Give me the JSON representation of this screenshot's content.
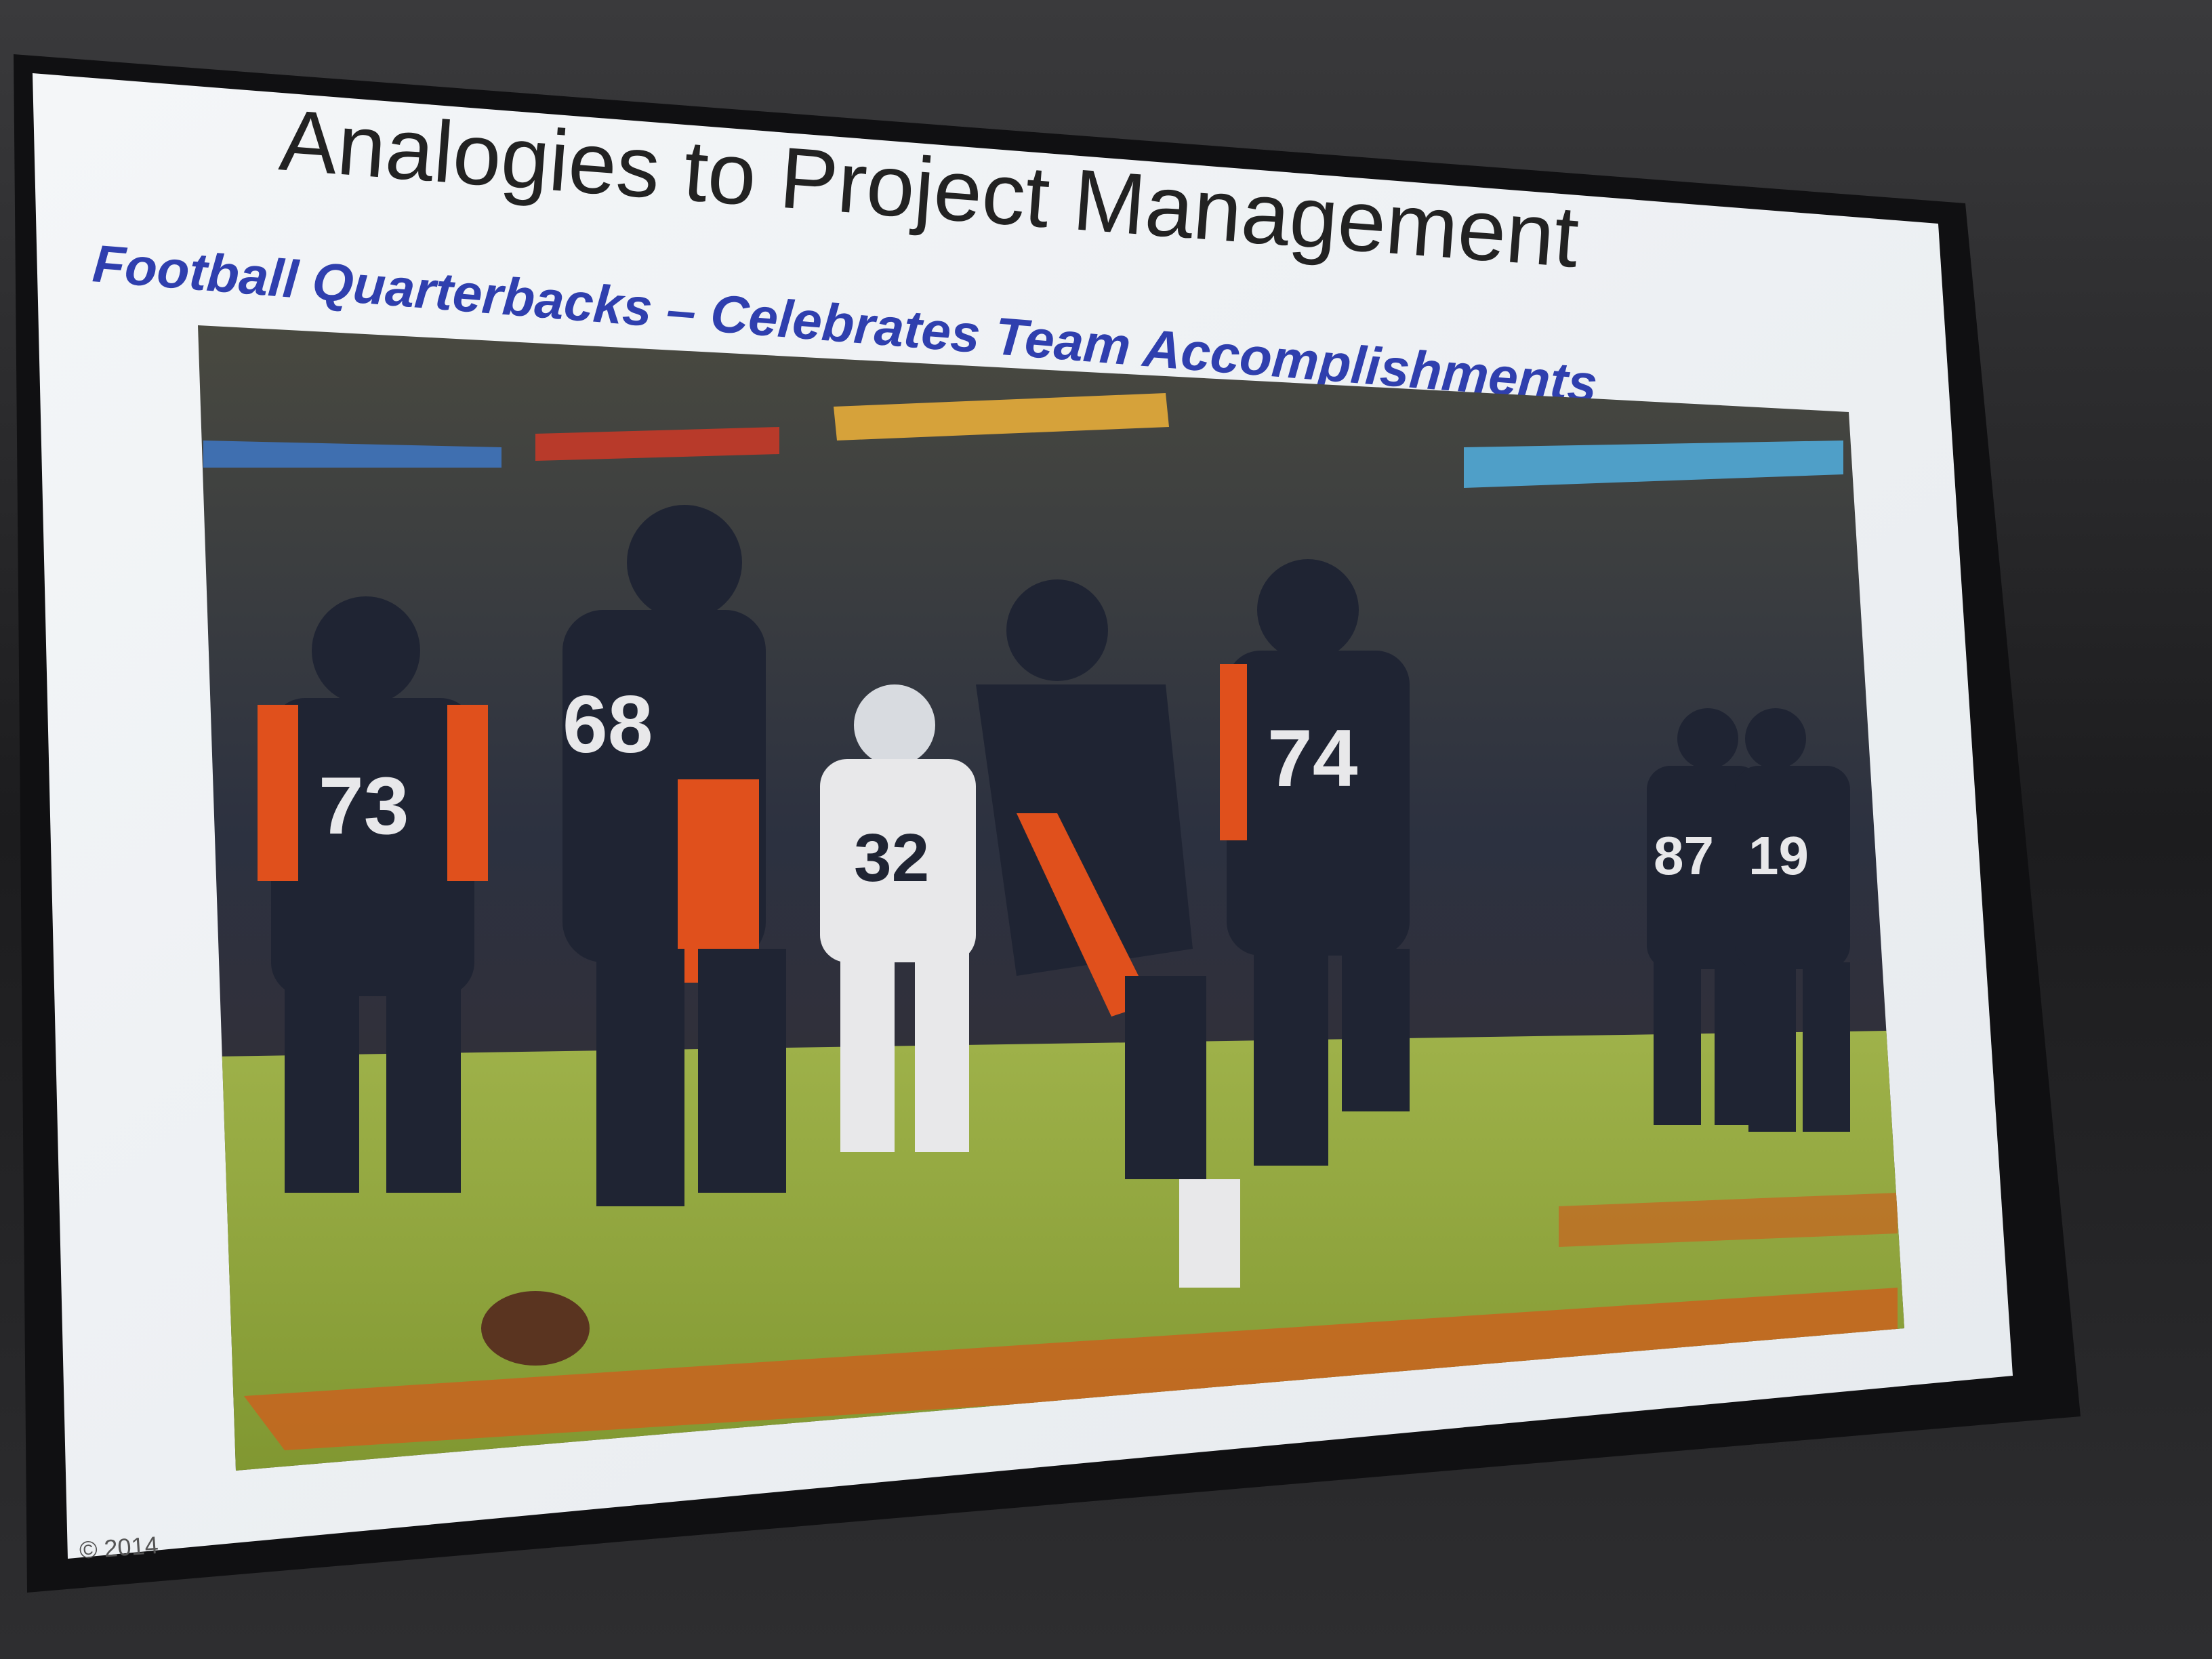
{
  "slide": {
    "title": "Analogies to Project Management",
    "subtitle": "Football Quarterbacks – Celebrates Team Accomplishments",
    "footer": "© 2014"
  },
  "photo": {
    "jersey_numbers": [
      "73",
      "68",
      "32",
      "74",
      "87",
      "19"
    ]
  },
  "colors": {
    "subtitle": "#2f3fae",
    "title": "#222222",
    "broncos_navy": "#1f2433",
    "broncos_orange": "#e0501c",
    "patriots_white": "#e8e8ea",
    "field_green": "#8fa53a"
  }
}
